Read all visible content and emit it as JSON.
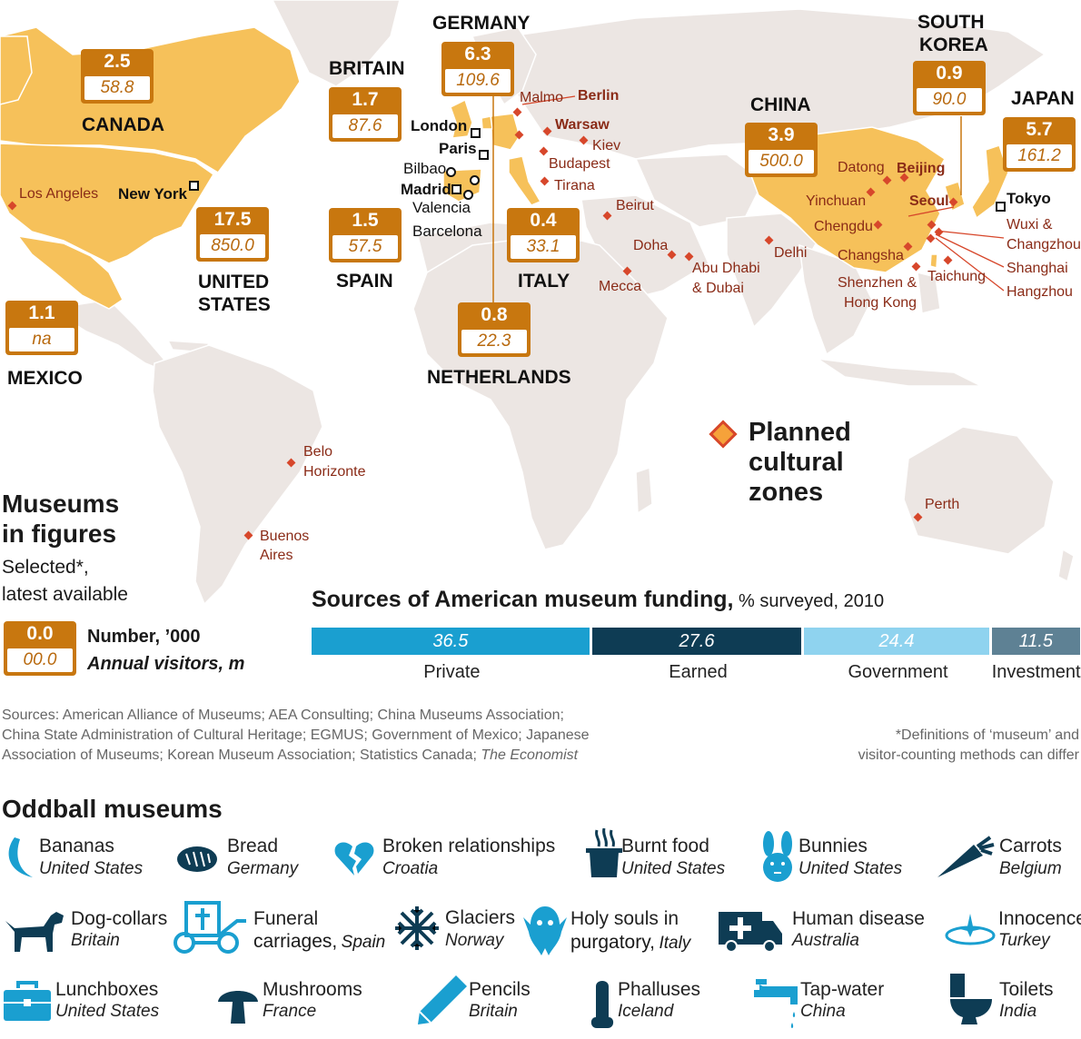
{
  "titles": {
    "museums_title_1": "Museums",
    "museums_title_2": "in figures",
    "museums_sub_1": "Selected*,",
    "museums_sub_2": "latest available",
    "legend_num": "0.0",
    "legend_vis": "00.0",
    "legend_num_label": "Number, ’000",
    "legend_vis_label": "Annual visitors, m",
    "planned_1": "Planned",
    "planned_2": "cultural",
    "planned_3": "zones",
    "funding_title": "Sources of American museum funding,",
    "funding_unit": " % surveyed, 2010",
    "oddball_title": "Oddball museums"
  },
  "countries": [
    {
      "name": "CANADA",
      "museums": "2.5",
      "visitors": "58.8"
    },
    {
      "name": "UNITED",
      "name2": "STATES",
      "museums": "17.5",
      "visitors": "850.0"
    },
    {
      "name": "MEXICO",
      "museums": "1.1",
      "visitors": "na"
    },
    {
      "name": "BRITAIN",
      "museums": "1.7",
      "visitors": "87.6"
    },
    {
      "name": "GERMANY",
      "museums": "6.3",
      "visitors": "109.6"
    },
    {
      "name": "SPAIN",
      "museums": "1.5",
      "visitors": "57.5"
    },
    {
      "name": "ITALY",
      "museums": "0.4",
      "visitors": "33.1"
    },
    {
      "name": "NETHERLANDS",
      "museums": "0.8",
      "visitors": "22.3"
    },
    {
      "name": "CHINA",
      "museums": "3.9",
      "visitors": "500.0"
    },
    {
      "name": "SOUTH",
      "name2": "KOREA",
      "museums": "0.9",
      "visitors": "90.0"
    },
    {
      "name": "JAPAN",
      "museums": "5.7",
      "visitors": "161.2"
    }
  ],
  "planned_cities": [
    "Los Angeles",
    "Malmo",
    "Berlin",
    "Warsaw",
    "Kiev",
    "Budapest",
    "Tirana",
    "Beirut",
    "Doha",
    "Abu Dhabi",
    "& Dubai",
    "Mecca",
    "Delhi",
    "Datong",
    "Beijing",
    "Yinchuan",
    "Chengdu",
    "Changsha",
    "Shenzhen &",
    "Hong Kong",
    "Seoul",
    "Taichung",
    "Wuxi &",
    "Changzhou",
    "Shanghai",
    "Hangzhou",
    "Belo",
    "Horizonte",
    "Buenos",
    "Aires",
    "Perth"
  ],
  "existing_cities": [
    "New York",
    "London",
    "Paris",
    "Bilbao",
    "Madrid",
    "Valencia",
    "Barcelona",
    "Tokyo"
  ],
  "chart_data": {
    "type": "bar",
    "title": "Sources of American museum funding, % surveyed, 2010",
    "categories": [
      "Private",
      "Earned",
      "Government",
      "Investment"
    ],
    "values": [
      36.5,
      27.6,
      24.4,
      11.5
    ],
    "colors": [
      "#1a9fd0",
      "#0e3c54",
      "#8fd3ef",
      "#5e8194"
    ],
    "stacked": true,
    "xlabel": "",
    "ylabel": ""
  },
  "sources": {
    "line1": "Sources: American Alliance of Museums; AEA Consulting; China Museums Association;",
    "line2": "China State Administration of Cultural Heritage; EGMUS; Government of Mexico; Japanese",
    "line3a": "Association of Museums; Korean Museum Association; Statistics Canada; ",
    "line3b": "The Economist",
    "note1": "*Definitions of ‘museum’ and",
    "note2": "visitor-counting methods can differ"
  },
  "oddball": [
    {
      "name": "Bananas",
      "place": "United States",
      "icon": "banana-icon"
    },
    {
      "name": "Bread",
      "place": "Germany",
      "icon": "bread-icon"
    },
    {
      "name": "Broken relationships",
      "place": "Croatia",
      "icon": "broken-heart-icon"
    },
    {
      "name": "Burnt food",
      "place": "United States",
      "icon": "burnt-food-icon"
    },
    {
      "name": "Bunnies",
      "place": "United States",
      "icon": "bunny-icon"
    },
    {
      "name": "Carrots",
      "place": "Belgium",
      "icon": "carrot-icon"
    },
    {
      "name": "Dog-collars",
      "place": "Britain",
      "icon": "dog-icon"
    },
    {
      "name": "Funeral",
      "name2": "carriages,",
      "place": "Spain",
      "icon": "hearse-icon"
    },
    {
      "name": "Glaciers",
      "place": "Norway",
      "icon": "snowflake-icon"
    },
    {
      "name": "Holy souls in",
      "name2": "purgatory,",
      "place": "Italy",
      "icon": "ghost-icon"
    },
    {
      "name": "Human disease",
      "place": "Australia",
      "icon": "ambulance-icon"
    },
    {
      "name": "Innocence",
      "place": "Turkey",
      "icon": "halo-icon"
    },
    {
      "name": "Lunchboxes",
      "place": "United States",
      "icon": "lunchbox-icon"
    },
    {
      "name": "Mushrooms",
      "place": "France",
      "icon": "mushroom-icon"
    },
    {
      "name": "Pencils",
      "place": "Britain",
      "icon": "pencil-icon"
    },
    {
      "name": "Phalluses",
      "place": "Iceland",
      "icon": "phallus-icon"
    },
    {
      "name": "Tap-water",
      "place": "China",
      "icon": "tap-icon"
    },
    {
      "name": "Toilets",
      "place": "India",
      "icon": "toilet-icon"
    }
  ]
}
